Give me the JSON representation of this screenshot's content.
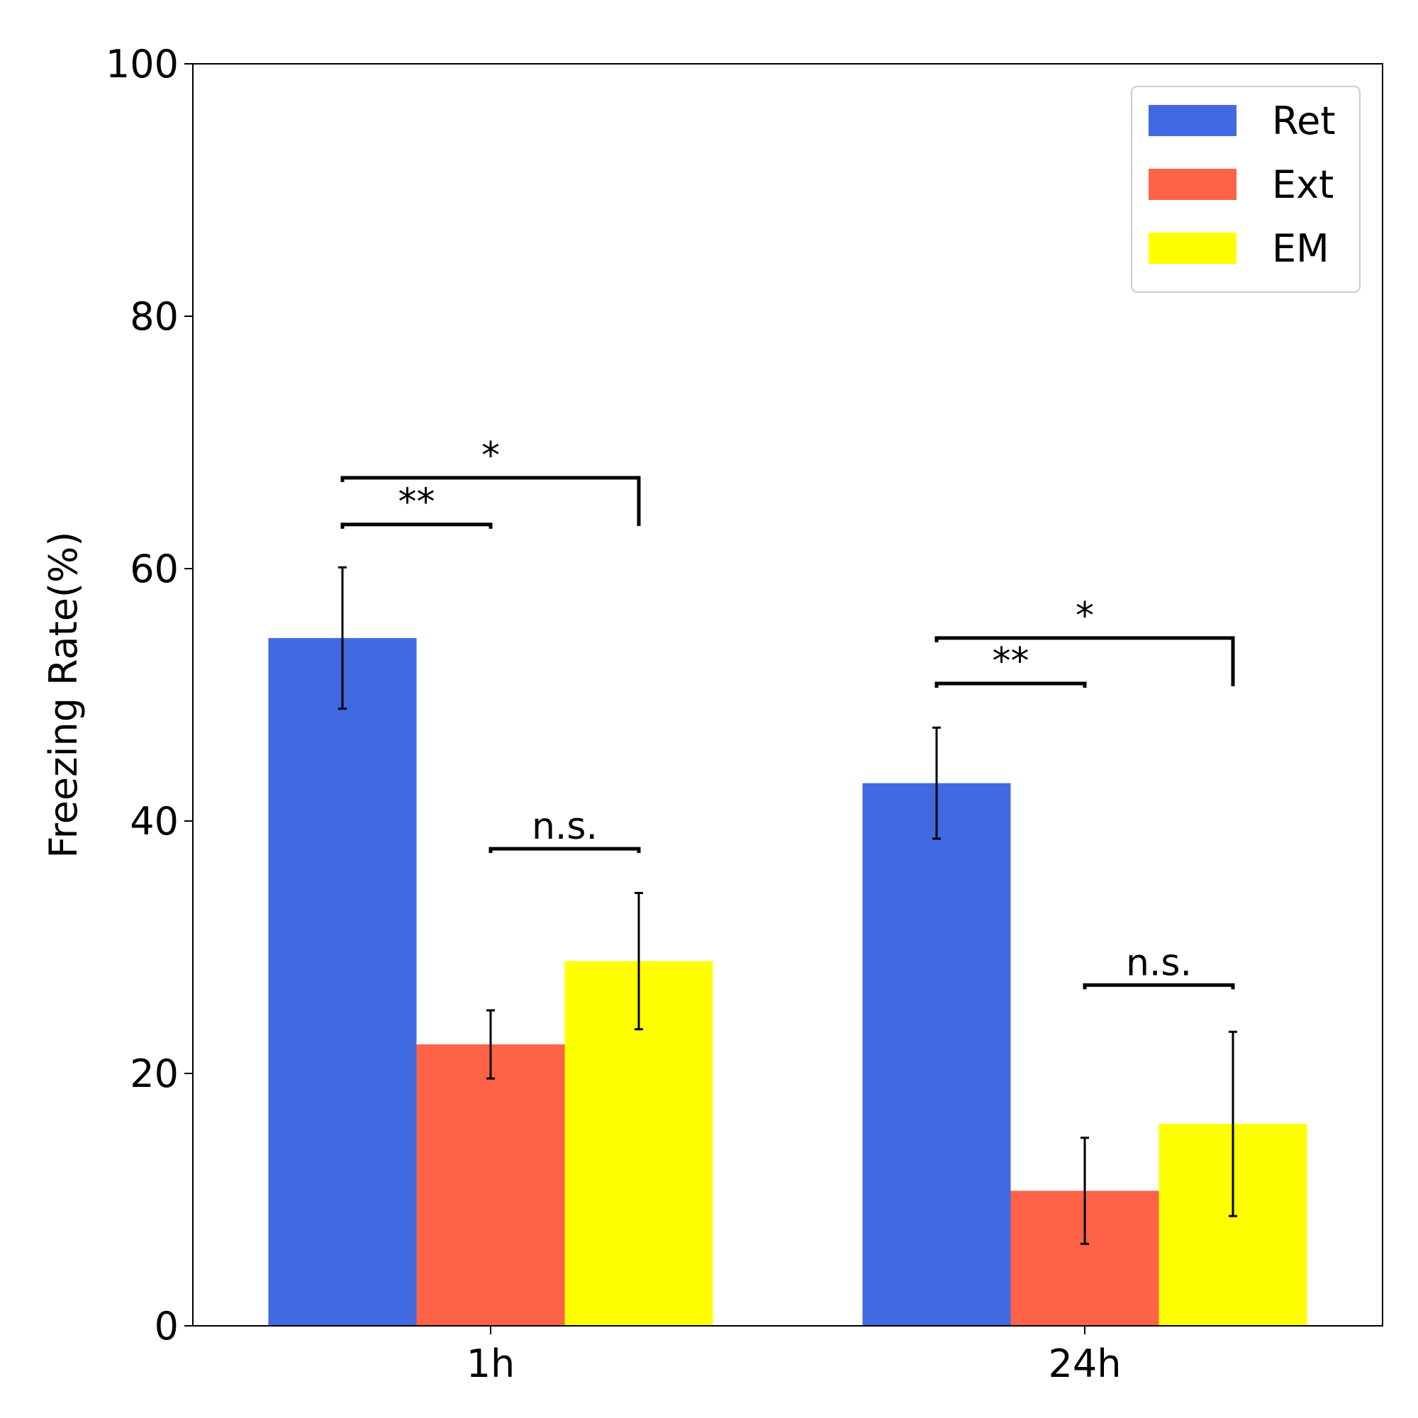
{
  "chart_data": {
    "type": "bar",
    "title": "",
    "xlabel": "",
    "ylabel": "Freezing Rate(%)",
    "ylim": [
      0,
      100
    ],
    "yticks": [
      0,
      20,
      40,
      60,
      80,
      100
    ],
    "categories": [
      "1h",
      "24h"
    ],
    "grid": false,
    "legend_position": "top-right",
    "series": [
      {
        "name": "Ret",
        "color": "#4169E1",
        "values": [
          54.5,
          43.0
        ],
        "errors": [
          5.6,
          4.4
        ]
      },
      {
        "name": "Ext",
        "color": "#FF6347",
        "values": [
          22.3,
          10.7
        ],
        "errors": [
          2.7,
          4.2
        ]
      },
      {
        "name": "EM",
        "color": "#FFFF00",
        "values": [
          28.9,
          16.0
        ],
        "errors": [
          5.4,
          7.3
        ]
      }
    ],
    "annotations": [
      {
        "category": 0,
        "from_series": 0,
        "to_series": 1,
        "label": "**",
        "y": 63.5
      },
      {
        "category": 0,
        "from_series": 0,
        "to_series": 2,
        "label": "*",
        "y": 67.2
      },
      {
        "category": 0,
        "from_series": 1,
        "to_series": 2,
        "label": "n.s.",
        "y": 37.8
      },
      {
        "category": 1,
        "from_series": 0,
        "to_series": 1,
        "label": "**",
        "y": 50.9
      },
      {
        "category": 1,
        "from_series": 0,
        "to_series": 2,
        "label": "*",
        "y": 54.5
      },
      {
        "category": 1,
        "from_series": 1,
        "to_series": 2,
        "label": "n.s.",
        "y": 27.0
      }
    ]
  }
}
